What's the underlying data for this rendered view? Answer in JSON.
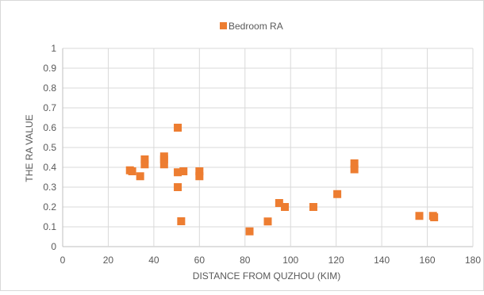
{
  "chart_data": {
    "type": "scatter",
    "title": "",
    "xlabel": "DISTANCE FROM QUZHOU (KIM)",
    "ylabel": "THE RA VALUE",
    "xlim": [
      0,
      180
    ],
    "ylim": [
      0,
      1
    ],
    "x_ticks": [
      "0",
      "20",
      "40",
      "60",
      "80",
      "100",
      "120",
      "140",
      "160",
      "180"
    ],
    "y_ticks": [
      "0",
      "0.1",
      "0.2",
      "0.3",
      "0.4",
      "0.5",
      "0.6",
      "0.7",
      "0.8",
      "0.9",
      "1"
    ],
    "grid": true,
    "legend_position": "top-center",
    "marker_color": "#ED7D31",
    "series": [
      {
        "name": "Bedroom RA",
        "points": [
          [
            29.5,
            0.385
          ],
          [
            30.5,
            0.38
          ],
          [
            34,
            0.355
          ],
          [
            36,
            0.44
          ],
          [
            36,
            0.415
          ],
          [
            44.5,
            0.455
          ],
          [
            44.5,
            0.44
          ],
          [
            44.5,
            0.415
          ],
          [
            50.5,
            0.6
          ],
          [
            50.5,
            0.375
          ],
          [
            50.5,
            0.3
          ],
          [
            52,
            0.128
          ],
          [
            53,
            0.38
          ],
          [
            60,
            0.38
          ],
          [
            60,
            0.355
          ],
          [
            82,
            0.077
          ],
          [
            90,
            0.127
          ],
          [
            95,
            0.22
          ],
          [
            97.5,
            0.2
          ],
          [
            110,
            0.2
          ],
          [
            120.5,
            0.265
          ],
          [
            128,
            0.42
          ],
          [
            128,
            0.39
          ],
          [
            156.5,
            0.155
          ],
          [
            162.5,
            0.155
          ],
          [
            163,
            0.148
          ]
        ]
      }
    ]
  }
}
